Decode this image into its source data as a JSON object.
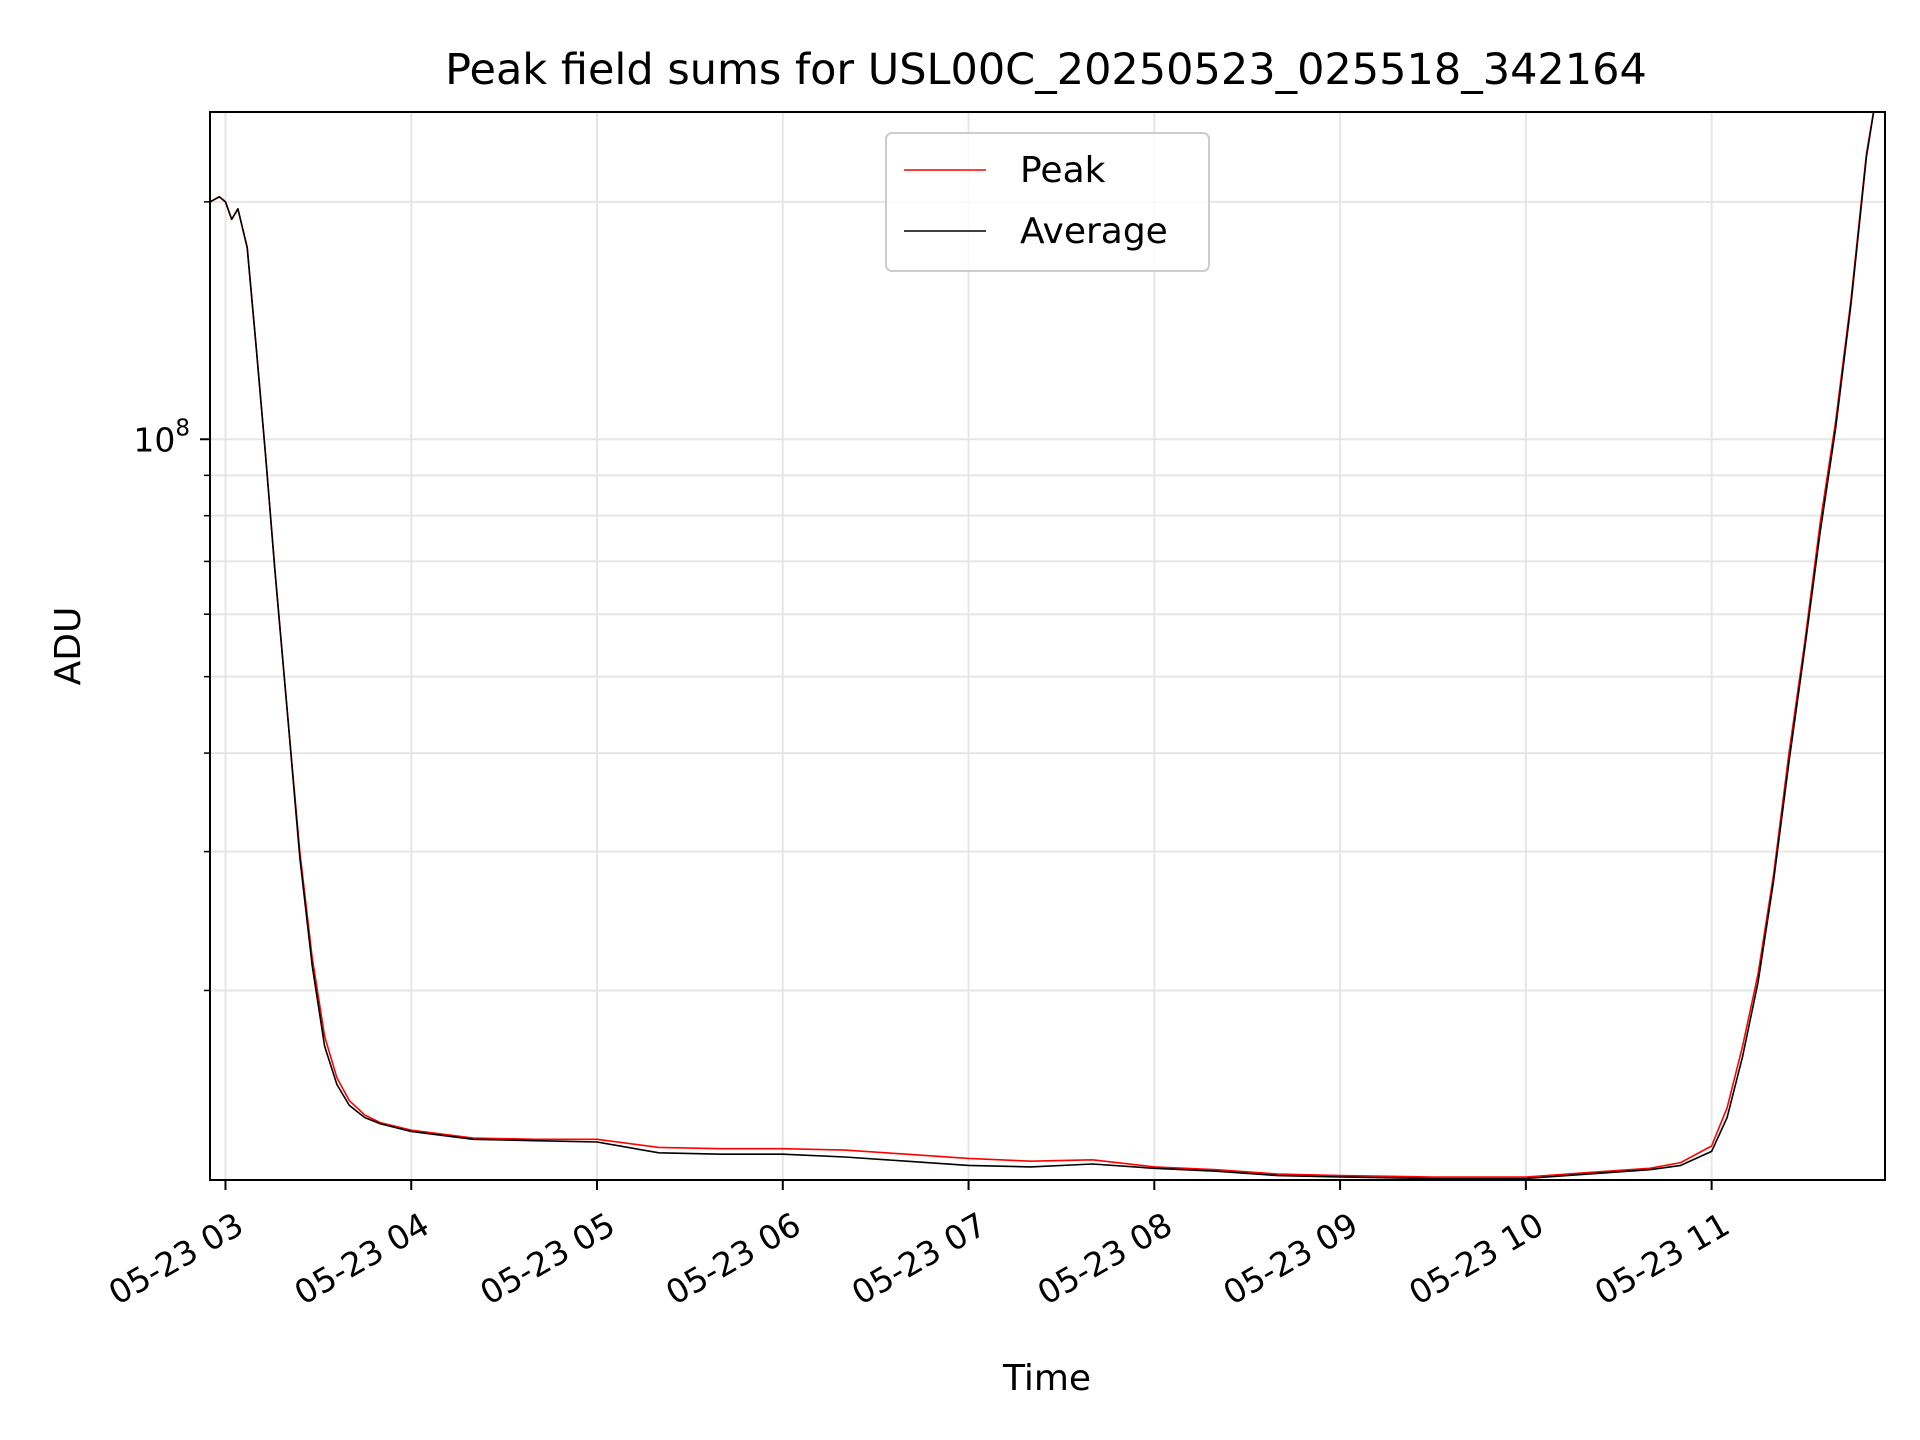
{
  "chart_data": {
    "type": "line",
    "title": "Peak field sums for USL00C_20250523_025518_342164",
    "xlabel": "Time",
    "ylabel": "ADU",
    "y_scale": "log",
    "ylim": [
      11500000,
      260000000
    ],
    "xlim": [
      "05-23 02:55",
      "05-23 11:56"
    ],
    "grid": true,
    "legend_position": "upper center",
    "x_ticks": [
      {
        "value": "05-23 03:00",
        "label": "05-23 03"
      },
      {
        "value": "05-23 04:00",
        "label": "05-23 04"
      },
      {
        "value": "05-23 05:00",
        "label": "05-23 05"
      },
      {
        "value": "05-23 06:00",
        "label": "05-23 06"
      },
      {
        "value": "05-23 07:00",
        "label": "05-23 07"
      },
      {
        "value": "05-23 08:00",
        "label": "05-23 08"
      },
      {
        "value": "05-23 09:00",
        "label": "05-23 09"
      },
      {
        "value": "05-23 10:00",
        "label": "05-23 10"
      },
      {
        "value": "05-23 11:00",
        "label": "05-23 11"
      }
    ],
    "y_major_ticks": [
      {
        "value": 100000000,
        "base": "10",
        "exp": "8"
      }
    ],
    "y_minor_ticks": [
      20000000,
      30000000,
      40000000,
      50000000,
      60000000,
      70000000,
      80000000,
      90000000,
      200000000
    ],
    "series": [
      {
        "name": "Peak",
        "color": "#ff0000",
        "x": [
          "05-23 02:55",
          "05-23 02:58",
          "05-23 03:00",
          "05-23 03:02",
          "05-23 03:04",
          "05-23 03:07",
          "05-23 03:10",
          "05-23 03:13",
          "05-23 03:16",
          "05-23 03:20",
          "05-23 03:24",
          "05-23 03:28",
          "05-23 03:32",
          "05-23 03:36",
          "05-23 03:40",
          "05-23 03:45",
          "05-23 03:50",
          "05-23 04:00",
          "05-23 04:20",
          "05-23 04:40",
          "05-23 05:00",
          "05-23 05:20",
          "05-23 05:40",
          "05-23 06:00",
          "05-23 06:20",
          "05-23 06:40",
          "05-23 07:00",
          "05-23 07:20",
          "05-23 07:40",
          "05-23 08:00",
          "05-23 08:20",
          "05-23 08:40",
          "05-23 09:00",
          "05-23 09:30",
          "05-23 10:00",
          "05-23 10:20",
          "05-23 10:40",
          "05-23 10:50",
          "05-23 11:00",
          "05-23 11:05",
          "05-23 11:10",
          "05-23 11:15",
          "05-23 11:20",
          "05-23 11:25",
          "05-23 11:30",
          "05-23 11:35",
          "05-23 11:40",
          "05-23 11:45",
          "05-23 11:50",
          "05-23 11:53"
        ],
        "y": [
          200000000,
          203000000,
          200000000,
          190000000,
          196000000,
          175000000,
          130000000,
          95000000,
          68000000,
          45000000,
          30000000,
          22000000,
          17500000,
          15500000,
          14500000,
          13900000,
          13600000,
          13300000,
          13000000,
          12950000,
          12950000,
          12650000,
          12600000,
          12600000,
          12550000,
          12400000,
          12250000,
          12150000,
          12200000,
          11950000,
          11850000,
          11700000,
          11650000,
          11600000,
          11600000,
          11750000,
          11900000,
          12100000,
          12700000,
          14200000,
          17000000,
          21000000,
          28000000,
          40000000,
          55000000,
          78000000,
          105000000,
          150000000,
          230000000,
          270000000
        ]
      },
      {
        "name": "Average",
        "color": "#000000",
        "x": [
          "05-23 02:55",
          "05-23 02:58",
          "05-23 03:00",
          "05-23 03:02",
          "05-23 03:04",
          "05-23 03:07",
          "05-23 03:10",
          "05-23 03:13",
          "05-23 03:16",
          "05-23 03:20",
          "05-23 03:24",
          "05-23 03:28",
          "05-23 03:32",
          "05-23 03:36",
          "05-23 03:40",
          "05-23 03:45",
          "05-23 03:50",
          "05-23 04:00",
          "05-23 04:20",
          "05-23 04:40",
          "05-23 05:00",
          "05-23 05:20",
          "05-23 05:40",
          "05-23 06:00",
          "05-23 06:20",
          "05-23 06:40",
          "05-23 07:00",
          "05-23 07:20",
          "05-23 07:40",
          "05-23 08:00",
          "05-23 08:20",
          "05-23 08:40",
          "05-23 09:00",
          "05-23 09:30",
          "05-23 10:00",
          "05-23 10:20",
          "05-23 10:40",
          "05-23 10:50",
          "05-23 11:00",
          "05-23 11:05",
          "05-23 11:10",
          "05-23 11:15",
          "05-23 11:20",
          "05-23 11:25",
          "05-23 11:30",
          "05-23 11:35",
          "05-23 11:40",
          "05-23 11:45",
          "05-23 11:50",
          "05-23 11:53"
        ],
        "y": [
          200000000,
          203000000,
          200000000,
          190000000,
          196000000,
          175000000,
          130000000,
          95000000,
          68000000,
          45000000,
          29500000,
          21500000,
          17000000,
          15200000,
          14300000,
          13800000,
          13550000,
          13250000,
          12950000,
          12900000,
          12850000,
          12450000,
          12400000,
          12400000,
          12300000,
          12150000,
          12000000,
          11950000,
          12050000,
          11900000,
          11800000,
          11650000,
          11600000,
          11550000,
          11550000,
          11700000,
          11850000,
          12000000,
          12500000,
          13800000,
          16500000,
          20500000,
          27500000,
          39000000,
          54000000,
          76000000,
          103000000,
          148000000,
          228000000,
          270000000
        ]
      }
    ]
  }
}
